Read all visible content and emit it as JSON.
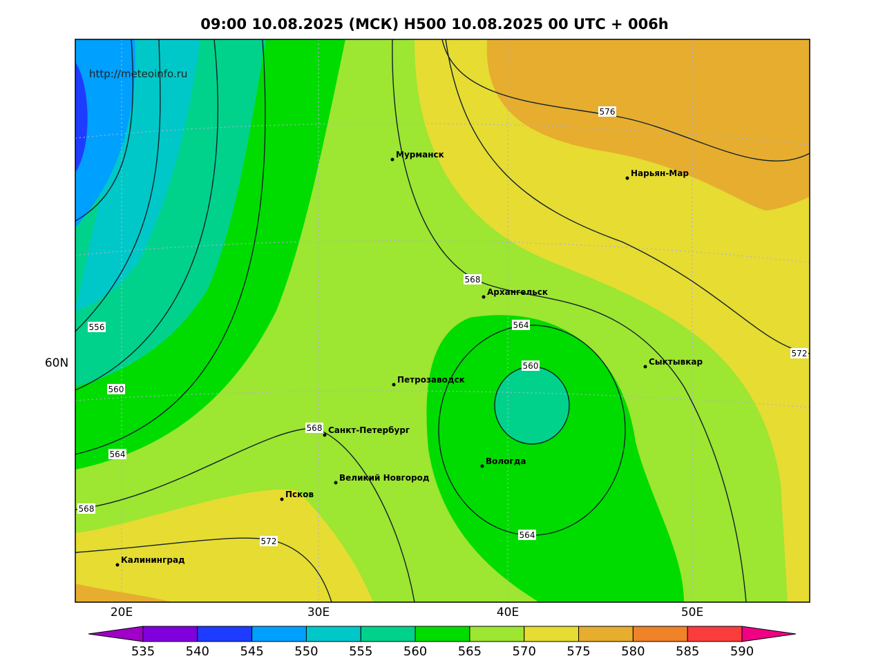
{
  "title": "09:00 10.08.2025 (МСК) H500  10.08.2025 00 UTC + 006h",
  "source": "http://meteoinfo.ru",
  "cities": [
    "Мурманск",
    "Нарьян-Мар",
    "Архангельск",
    "Сыктывкар",
    "Петрозаводск",
    "Санкт-Петербург",
    "Вологда",
    "Великий Новгород",
    "Псков",
    "Калининград"
  ],
  "contour_labels": [
    "576",
    "568",
    "564",
    "560",
    "556",
    "560",
    "564",
    "568",
    "568",
    "572",
    "564",
    "572"
  ],
  "lon_labels": [
    "20E",
    "30E",
    "40E",
    "50E"
  ],
  "lat_labels": [
    "60N"
  ],
  "colorbar": {
    "labels": [
      "535",
      "540",
      "545",
      "550",
      "555",
      "560",
      "565",
      "570",
      "575",
      "580",
      "585",
      "590"
    ],
    "colors": [
      "#a000c8",
      "#7f00dc",
      "#1e3cff",
      "#00a0ff",
      "#00c8c8",
      "#00d28c",
      "#00dc00",
      "#9de632",
      "#e6dc32",
      "#e6ad2f",
      "#f08228",
      "#fa3c3c",
      "#f00082"
    ]
  }
}
